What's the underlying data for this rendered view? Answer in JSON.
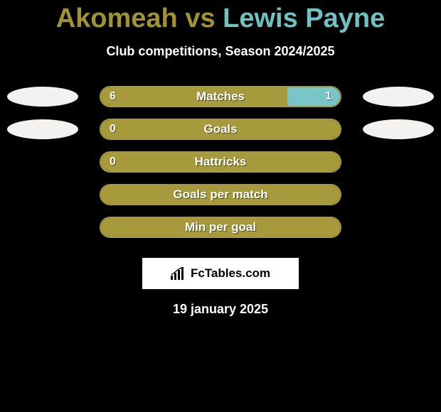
{
  "background_color": "#000000",
  "title": {
    "player1": "Akomeah",
    "vs": " vs ",
    "player2": "Lewis Payne",
    "player1_color": "#a09432",
    "player2_color": "#71c0c2"
  },
  "subtitle": "Club competitions, Season 2024/2025",
  "subtitle_color": "#ffffff",
  "avatar_color": "#f3f2f0",
  "rows": [
    {
      "label": "Matches",
      "left_val": "6",
      "right_val": "1",
      "left_pct": 78,
      "right_pct": 22,
      "left_color": "#a69a3c",
      "right_color": "#79c4c6",
      "border_color": "#a69a3c",
      "show_left_avatar": true,
      "show_right_avatar": true,
      "show_left_val": true,
      "show_right_val": true
    },
    {
      "label": "Goals",
      "left_val": "0",
      "right_val": "",
      "left_pct": 100,
      "right_pct": 0,
      "left_color": "#a69a3c",
      "right_color": "#79c4c6",
      "border_color": "#a69a3c",
      "show_left_avatar": true,
      "show_right_avatar": true,
      "show_left_val": true,
      "show_right_val": false
    },
    {
      "label": "Hattricks",
      "left_val": "0",
      "right_val": "",
      "left_pct": 100,
      "right_pct": 0,
      "left_color": "#a69a3c",
      "right_color": "#79c4c6",
      "border_color": "#a69a3c",
      "show_left_avatar": false,
      "show_right_avatar": false,
      "show_left_val": true,
      "show_right_val": false
    },
    {
      "label": "Goals per match",
      "left_val": "",
      "right_val": "",
      "left_pct": 100,
      "right_pct": 0,
      "left_color": "#a69a3c",
      "right_color": "#79c4c6",
      "border_color": "#a69a3c",
      "show_left_avatar": false,
      "show_right_avatar": false,
      "show_left_val": false,
      "show_right_val": false
    },
    {
      "label": "Min per goal",
      "left_val": "",
      "right_val": "",
      "left_pct": 100,
      "right_pct": 0,
      "left_color": "#a69a3c",
      "right_color": "#79c4c6",
      "border_color": "#a69a3c",
      "show_left_avatar": false,
      "show_right_avatar": false,
      "show_left_val": false,
      "show_right_val": false
    }
  ],
  "logo_text": "FcTables.com",
  "date": "19 january 2025"
}
